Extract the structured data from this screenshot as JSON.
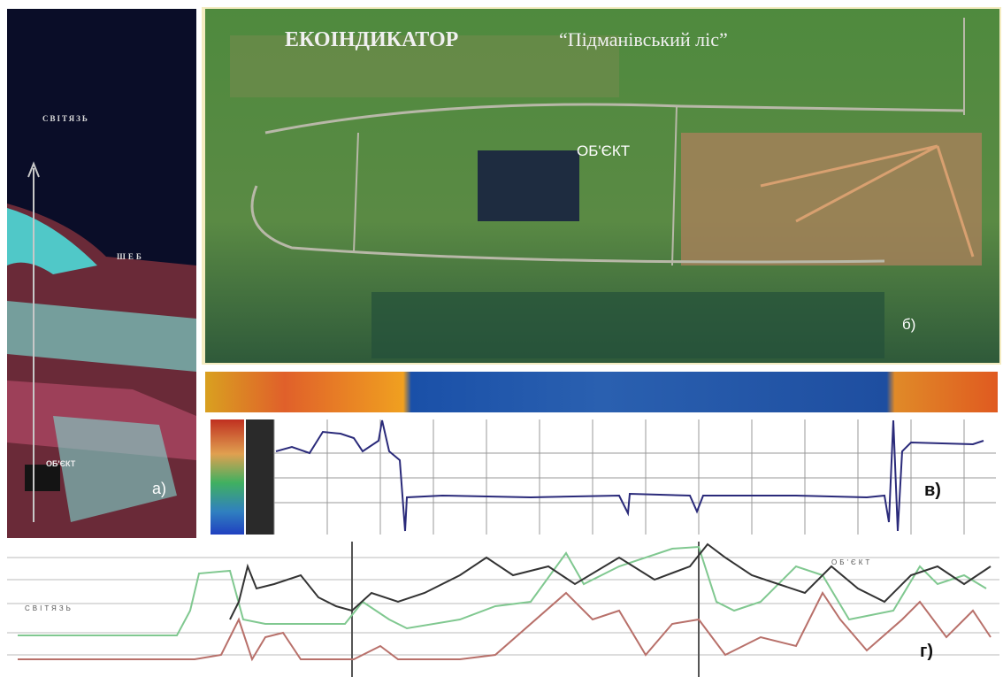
{
  "panel_a": {
    "labels": [
      "СВІТЯЗЬ",
      "ШЕБ",
      "ОБ'ЄКТ"
    ],
    "marker": "а)"
  },
  "panel_b": {
    "title": "ЕКОІНДИКАТОР",
    "subtitle": "“Підманівський ліс”",
    "object_label": "ОБ'ЄКТ",
    "marker": "б)"
  },
  "panel_c": {
    "marker": "в)"
  },
  "panel_d": {
    "labels": [
      "СВІТЯЗЬ",
      "ОБ'ЄКТ"
    ],
    "marker": "г)"
  }
}
